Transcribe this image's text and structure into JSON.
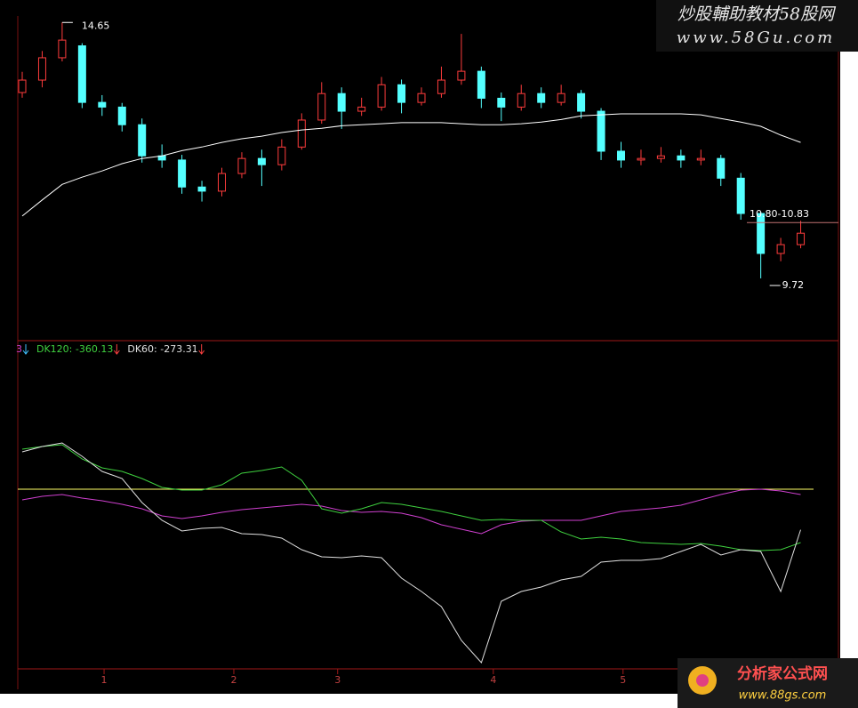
{
  "chart_data": [
    {
      "type": "candlestick",
      "open": [
        13.3,
        13.54,
        13.97,
        14.2,
        13.11,
        13.02,
        12.68,
        12.08,
        12.0,
        11.48,
        11.4,
        11.74,
        12.03,
        11.91,
        12.25,
        12.77,
        13.28,
        12.94,
        13.02,
        13.45,
        13.11,
        13.28,
        13.54,
        13.71,
        13.19,
        13.02,
        13.28,
        13.11,
        13.28,
        12.94,
        12.17,
        12.0,
        12.03,
        12.08,
        12.0,
        12.03,
        11.65,
        10.97,
        10.2,
        10.37
      ],
      "high": [
        13.7,
        14.1,
        14.65,
        14.25,
        13.25,
        13.1,
        12.8,
        12.3,
        12.1,
        11.6,
        11.85,
        12.15,
        12.2,
        12.4,
        12.9,
        13.5,
        13.4,
        13.2,
        13.6,
        13.55,
        13.4,
        13.8,
        14.43,
        13.8,
        13.3,
        13.45,
        13.4,
        13.45,
        13.35,
        13.0,
        12.35,
        12.2,
        12.25,
        12.2,
        12.2,
        12.1,
        11.75,
        11.0,
        10.5,
        10.83
      ],
      "low": [
        13.2,
        13.4,
        13.9,
        13.0,
        12.85,
        12.55,
        11.95,
        11.85,
        11.35,
        11.2,
        11.3,
        11.65,
        11.5,
        11.8,
        12.2,
        12.7,
        12.6,
        12.85,
        12.95,
        12.9,
        13.05,
        13.2,
        13.45,
        13.0,
        12.75,
        12.95,
        13.0,
        13.05,
        12.8,
        12.0,
        11.85,
        11.9,
        11.95,
        11.85,
        11.9,
        11.5,
        10.85,
        9.72,
        10.05,
        10.3
      ],
      "close": [
        13.54,
        13.97,
        14.31,
        13.11,
        13.02,
        12.68,
        12.08,
        12.0,
        11.48,
        11.4,
        11.74,
        12.03,
        11.91,
        12.25,
        12.77,
        13.28,
        12.94,
        13.02,
        13.45,
        13.11,
        13.28,
        13.54,
        13.71,
        13.19,
        13.02,
        13.28,
        13.11,
        13.28,
        12.94,
        12.17,
        12.0,
        12.03,
        12.08,
        12.0,
        12.03,
        11.65,
        10.97,
        10.2,
        10.37,
        10.59
      ],
      "up_color": "#ff3c3c",
      "down_color": "#54ffff",
      "ma": {
        "color": "#ffffff",
        "values": [
          10.92,
          11.23,
          11.53,
          11.67,
          11.79,
          11.93,
          12.03,
          12.08,
          12.18,
          12.25,
          12.34,
          12.41,
          12.46,
          12.53,
          12.58,
          12.61,
          12.66,
          12.68,
          12.7,
          12.72,
          12.72,
          12.72,
          12.7,
          12.68,
          12.68,
          12.7,
          12.73,
          12.78,
          12.85,
          12.87,
          12.89,
          12.89,
          12.89,
          12.89,
          12.87,
          12.8,
          12.73,
          12.65,
          12.48,
          12.34
        ]
      },
      "ylim": [
        8.52,
        14.74
      ],
      "annotations": [
        "14.65",
        "10.80-10.83",
        "9.72"
      ]
    },
    {
      "type": "line",
      "series": [
        {
          "legend": "3",
          "color": "#d040d0",
          "values": [
            -72,
            -48,
            -36,
            -60,
            -78,
            -102,
            -132,
            -180,
            -198,
            -180,
            -156,
            -138,
            -126,
            -114,
            -102,
            -114,
            -144,
            -156,
            -150,
            -162,
            -192,
            -240,
            -270,
            -300,
            -240,
            -216,
            -210,
            -210,
            -210,
            -180,
            -150,
            -138,
            -126,
            -108,
            -72,
            -36,
            -6,
            0,
            -12,
            -36
          ]
        },
        {
          "legend": "DK120: -360.13",
          "color": "#3fd13f",
          "values": [
            270,
            288,
            300,
            204,
            144,
            120,
            72,
            12,
            -6,
            -6,
            30,
            108,
            126,
            150,
            60,
            -132,
            -162,
            -132,
            -90,
            -102,
            -126,
            -150,
            -180,
            -210,
            -204,
            -210,
            -210,
            -288,
            -336,
            -324,
            -336,
            -360,
            -366,
            -372,
            -366,
            -384,
            -408,
            -414,
            -408,
            -360.13
          ]
        },
        {
          "legend": "DK60: -273.31",
          "color": "#e0e0e0",
          "values": [
            252,
            288,
            312,
            222,
            120,
            72,
            -90,
            -210,
            -282,
            -264,
            -258,
            -300,
            -306,
            -330,
            -408,
            -456,
            -462,
            -450,
            -462,
            -600,
            -690,
            -792,
            -1020,
            -1170,
            -756,
            -690,
            -660,
            -612,
            -588,
            -492,
            -480,
            -480,
            -468,
            -420,
            -372,
            -444,
            -408,
            -420,
            -690,
            -273.31
          ]
        }
      ],
      "ylim": [
        -1200,
        990
      ],
      "ref_line": 0,
      "ref_color": "#ffff66",
      "xticks": [
        {
          "value": 4.1,
          "label": "1"
        },
        {
          "value": 10.6,
          "label": "2"
        },
        {
          "value": 15.8,
          "label": "3"
        },
        {
          "value": 23.6,
          "label": "4"
        },
        {
          "value": 30.1,
          "label": "5"
        }
      ]
    }
  ],
  "watermarks": {
    "top_title": "炒股輔助教材58股网",
    "top_url": "www.58Gu.com",
    "bottom_title": "分析家公式网",
    "bottom_url": "www.88gs.com"
  }
}
